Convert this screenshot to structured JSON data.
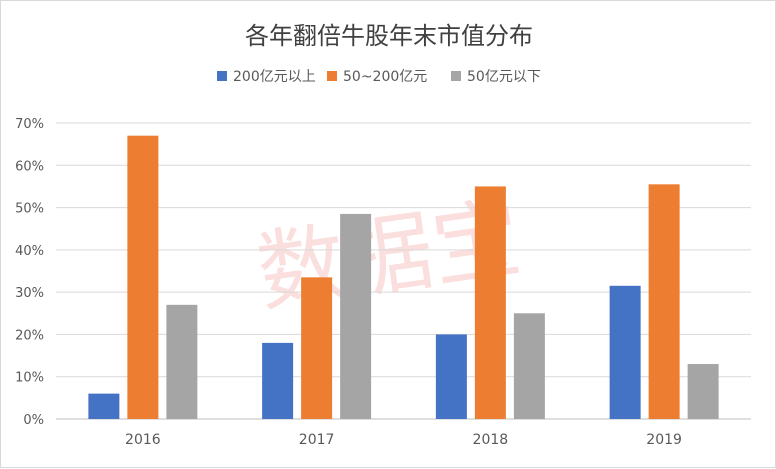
{
  "chart_data": {
    "type": "bar",
    "title": "各年翻倍牛股年末市值分布",
    "categories": [
      "2016",
      "2017",
      "2018",
      "2019"
    ],
    "series": [
      {
        "name": "200亿元以上",
        "color": "#4472c4",
        "values": [
          6,
          18,
          20,
          31.5
        ]
      },
      {
        "name": "50~200亿元",
        "color": "#ed7d31",
        "values": [
          67,
          33.5,
          55,
          55.5
        ]
      },
      {
        "name": "50亿元以下",
        "color": "#a5a5a5",
        "values": [
          27,
          48.5,
          25,
          13
        ]
      }
    ],
    "yticks": [
      "0%",
      "10%",
      "20%",
      "30%",
      "40%",
      "50%",
      "60%",
      "70%"
    ],
    "ylim": [
      0,
      70
    ],
    "ystep": 10,
    "grid": true,
    "legend_position": "top",
    "xlabel": "",
    "ylabel": ""
  },
  "watermark": "数据宝"
}
